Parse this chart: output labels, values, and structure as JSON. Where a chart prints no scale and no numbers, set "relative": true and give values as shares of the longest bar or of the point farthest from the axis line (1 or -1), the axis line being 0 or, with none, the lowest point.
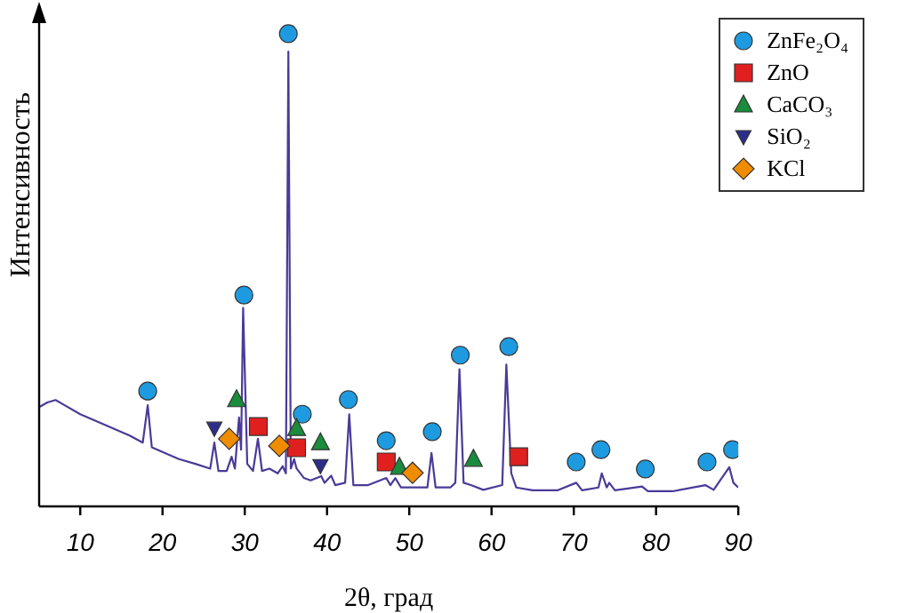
{
  "chart_data": {
    "type": "line",
    "xlabel": "2θ, град",
    "ylabel": "Интенсивность",
    "relative": true,
    "xlim": [
      5,
      90
    ],
    "xticks": [
      10,
      20,
      30,
      40,
      50,
      60,
      70,
      80,
      90
    ],
    "tick_labels": "x",
    "grid": false,
    "legend": "top right",
    "line_style": "solid",
    "series": [
      {
        "color": "#4b3a98",
        "marker": "none",
        "x": [
          5,
          6,
          7,
          8,
          10,
          12,
          14,
          16,
          17.6,
          18.2,
          18.7,
          20,
          22,
          24,
          25.8,
          26.3,
          26.8,
          27.8,
          28.4,
          28.8,
          29.3,
          29.55,
          29.8,
          30.3,
          31,
          31.6,
          32.1,
          33,
          34,
          34.6,
          35,
          35.3,
          35.6,
          36,
          36.3,
          37.2,
          38,
          39.3,
          39.7,
          40.5,
          41,
          42.2,
          42.7,
          43.2,
          45,
          47.2,
          47.7,
          48.3,
          49,
          51,
          52.2,
          52.7,
          53.2,
          55,
          55.6,
          56.1,
          56.6,
          57.5,
          59,
          61.3,
          61.8,
          62.4,
          63,
          65,
          68,
          70.3,
          71,
          73,
          73.4,
          74,
          74.3,
          75,
          78.3,
          79,
          82,
          86,
          87,
          88.9,
          89.4,
          90
        ],
        "values": [
          0.21,
          0.22,
          0.225,
          0.215,
          0.195,
          0.18,
          0.165,
          0.15,
          0.135,
          0.214,
          0.125,
          0.115,
          0.1,
          0.09,
          0.08,
          0.135,
          0.075,
          0.075,
          0.105,
          0.08,
          0.188,
          0.12,
          0.42,
          0.09,
          0.075,
          0.143,
          0.075,
          0.08,
          0.07,
          0.085,
          0.07,
          0.962,
          0.08,
          0.1,
          0.08,
          0.06,
          0.055,
          0.064,
          0.05,
          0.065,
          0.045,
          0.05,
          0.195,
          0.045,
          0.045,
          0.06,
          0.045,
          0.06,
          0.04,
          0.04,
          0.04,
          0.113,
          0.04,
          0.04,
          0.05,
          0.29,
          0.05,
          0.045,
          0.035,
          0.045,
          0.3,
          0.07,
          0.04,
          0.034,
          0.034,
          0.05,
          0.034,
          0.04,
          0.07,
          0.04,
          0.05,
          0.034,
          0.042,
          0.032,
          0.032,
          0.045,
          0.035,
          0.083,
          0.05,
          0.04
        ]
      },
      {
        "type": "scatter",
        "name": "ZnFe₂O₄",
        "color": "#1e9be0",
        "marker": "circle",
        "x": [
          18.2,
          29.9,
          35.3,
          37,
          42.6,
          47.2,
          52.8,
          56.2,
          62.1,
          70.3,
          73.3,
          78.7,
          86.2,
          89.3
        ],
        "values": [
          0.244,
          0.447,
          1,
          0.195,
          0.226,
          0.139,
          0.158,
          0.32,
          0.338,
          0.094,
          0.12,
          0.079,
          0.094,
          0.12
        ]
      },
      {
        "type": "scatter",
        "name": "ZnO",
        "color": "#e0201f",
        "marker": "square",
        "x": [
          31.65,
          36.3,
          47.2,
          63.3
        ],
        "values": [
          0.169,
          0.124,
          0.094,
          0.105
        ]
      },
      {
        "type": "scatter",
        "name": "CaCO₃",
        "color": "#1a8c3c",
        "marker": "triangle",
        "x": [
          29,
          36.3,
          39.2,
          48.8,
          57.8
        ],
        "values": [
          0.226,
          0.165,
          0.135,
          0.083,
          0.1
        ]
      },
      {
        "type": "scatter",
        "name": "SiO₂",
        "color": "#2d2e8a",
        "marker": "triangle-down",
        "x": [
          26.3,
          39.2
        ],
        "values": [
          0.165,
          0.086
        ]
      },
      {
        "type": "scatter",
        "name": "KCl",
        "color": "#f08c00",
        "marker": "diamond",
        "x": [
          28.1,
          34.2,
          50.4
        ],
        "values": [
          0.143,
          0.128,
          0.071
        ]
      }
    ]
  }
}
